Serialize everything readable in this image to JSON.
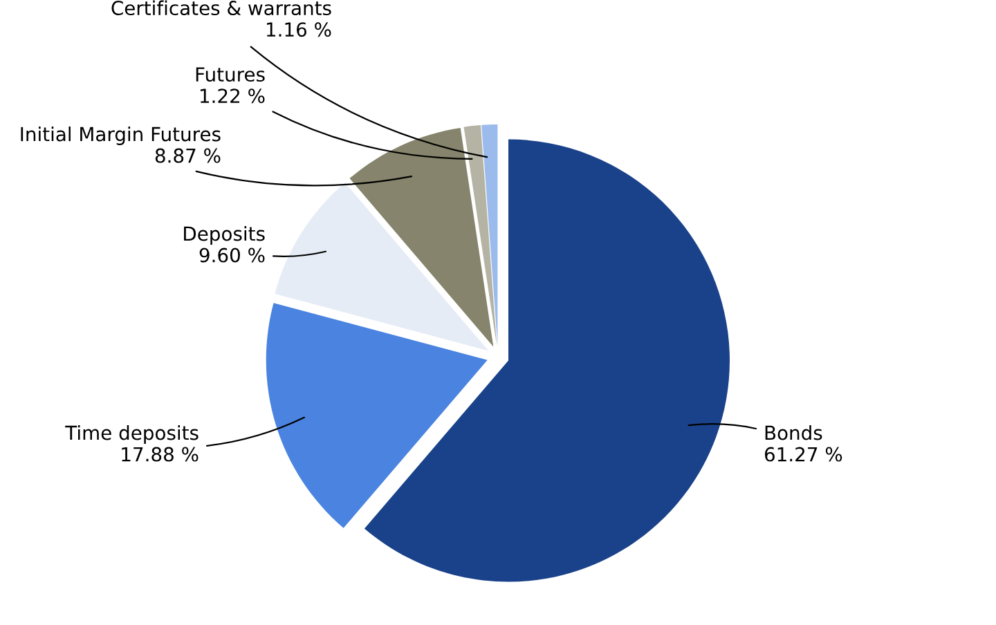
{
  "chart_data": {
    "type": "pie",
    "categories": [
      "Bonds",
      "Time deposits",
      "Deposits",
      "Initial Margin Futures",
      "Futures",
      "Certificates & warrants"
    ],
    "values": [
      61.27,
      17.88,
      9.6,
      8.87,
      1.22,
      1.16
    ],
    "value_labels": [
      "61.27 %",
      "17.88 %",
      "9.60 %",
      "8.87 %",
      "1.22 %",
      "1.16 %"
    ],
    "colors": [
      "#1a428a",
      "#4a84e0",
      "#e6ecf6",
      "#86846c",
      "#b5b3a3",
      "#9bbbec"
    ],
    "legend": false
  }
}
